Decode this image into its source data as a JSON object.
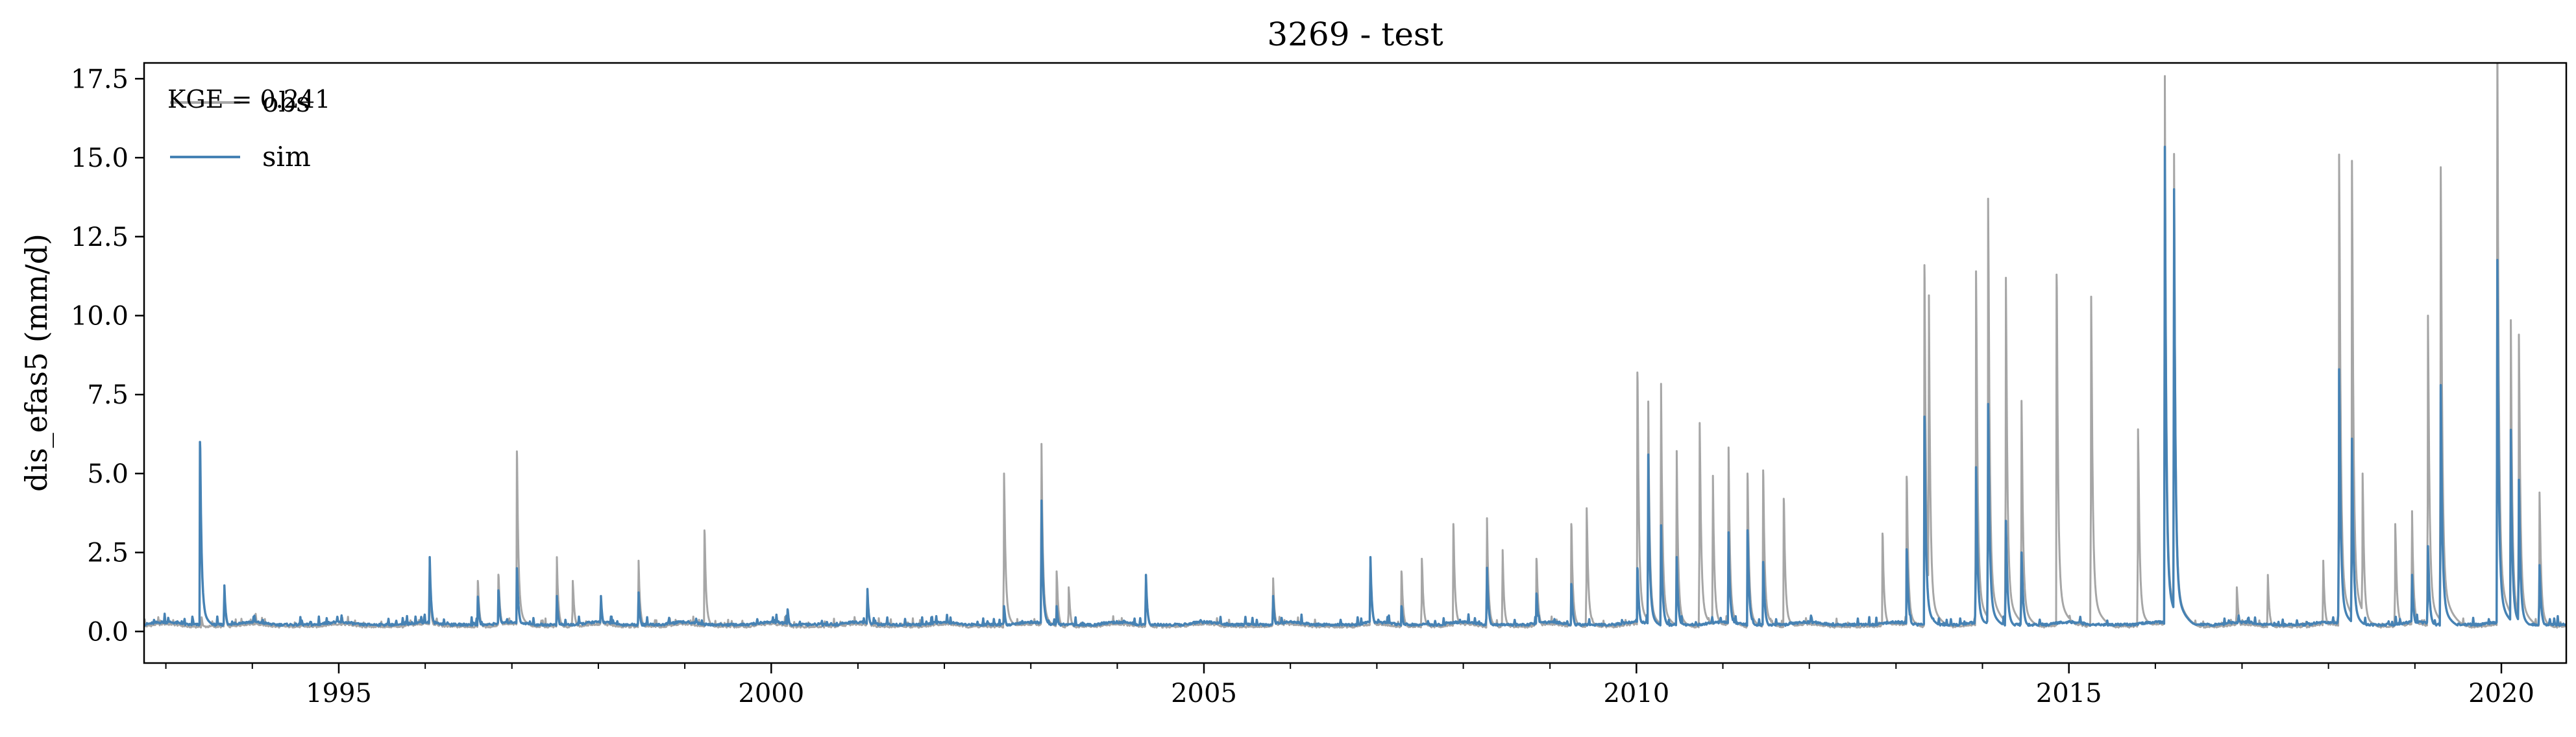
{
  "chart_data": {
    "type": "line",
    "title": "3269 - test",
    "xlabel": "",
    "ylabel": "dis_efas5 (mm/d)",
    "annotation": "KGE = 0.241",
    "xlim": [
      "1992-10-01",
      "2020-10-01"
    ],
    "ylim": [
      -1.0,
      18.0
    ],
    "x_ticks": [
      "1995",
      "2000",
      "2005",
      "2010",
      "2015",
      "2020"
    ],
    "y_ticks": [
      "0.0",
      "2.5",
      "5.0",
      "7.5",
      "10.0",
      "12.5",
      "15.0",
      "17.5"
    ],
    "grid": false,
    "legend_position": "top-left",
    "series": [
      {
        "name": "obs",
        "color": "#a6a6a6",
        "baseline": 0.12,
        "peaks": [
          [
            "1993-06-01",
            0.4
          ],
          [
            "1993-09-05",
            1.1
          ],
          [
            "1994-01-15",
            0.5
          ],
          [
            "1996-01-20",
            1.4
          ],
          [
            "1996-08-10",
            1.6
          ],
          [
            "1996-11-05",
            1.8
          ],
          [
            "1997-01-22",
            5.7
          ],
          [
            "1997-07-10",
            2.1
          ],
          [
            "1997-09-15",
            1.6
          ],
          [
            "1998-01-12",
            0.9
          ],
          [
            "1998-06-20",
            2.0
          ],
          [
            "1999-03-25",
            3.2
          ],
          [
            "2000-03-10",
            0.6
          ],
          [
            "2001-02-10",
            1.2
          ],
          [
            "2002-09-10",
            5.0
          ],
          [
            "2003-02-15",
            5.3
          ],
          [
            "2003-04-20",
            1.9
          ],
          [
            "2003-06-10",
            1.4
          ],
          [
            "2004-05-01",
            1.6
          ],
          [
            "2005-10-20",
            1.5
          ],
          [
            "2006-12-05",
            2.0
          ],
          [
            "2007-04-15",
            1.9
          ],
          [
            "2007-07-10",
            2.3
          ],
          [
            "2007-11-20",
            3.4
          ],
          [
            "2008-04-10",
            3.2
          ],
          [
            "2008-06-15",
            2.3
          ],
          [
            "2008-11-05",
            2.3
          ],
          [
            "2009-04-01",
            3.4
          ],
          [
            "2009-06-05",
            3.9
          ],
          [
            "2010-01-05",
            8.2
          ],
          [
            "2010-02-20",
            6.5
          ],
          [
            "2010-04-15",
            7.0
          ],
          [
            "2010-06-20",
            5.1
          ],
          [
            "2010-09-25",
            6.6
          ],
          [
            "2010-11-20",
            4.4
          ],
          [
            "2011-01-25",
            5.2
          ],
          [
            "2011-04-15",
            5.0
          ],
          [
            "2011-06-20",
            5.1
          ],
          [
            "2011-09-15",
            4.2
          ],
          [
            "2012-11-05",
            3.1
          ],
          [
            "2013-02-15",
            4.9
          ],
          [
            "2013-05-01",
            11.6
          ],
          [
            "2013-05-20",
            9.5
          ],
          [
            "2013-12-05",
            11.4
          ],
          [
            "2014-01-25",
            13.7
          ],
          [
            "2014-04-10",
            11.2
          ],
          [
            "2014-06-15",
            7.3
          ],
          [
            "2014-11-10",
            11.3
          ],
          [
            "2015-04-05",
            10.6
          ],
          [
            "2015-10-20",
            6.4
          ],
          [
            "2016-02-10",
            15.7
          ],
          [
            "2016-03-20",
            13.5
          ],
          [
            "2016-12-10",
            1.4
          ],
          [
            "2017-04-20",
            1.6
          ],
          [
            "2017-12-10",
            2.0
          ],
          [
            "2018-02-15",
            15.1
          ],
          [
            "2018-04-10",
            14.9
          ],
          [
            "2018-05-25",
            5.0
          ],
          [
            "2018-10-10",
            3.4
          ],
          [
            "2018-12-20",
            3.4
          ],
          [
            "2019-02-25",
            10.0
          ],
          [
            "2019-04-20",
            14.7
          ],
          [
            "2019-12-15",
            17.2
          ],
          [
            "2020-02-10",
            8.8
          ],
          [
            "2020-03-15",
            9.4
          ],
          [
            "2020-06-10",
            4.4
          ]
        ]
      },
      {
        "name": "sim",
        "color": "#4682b4",
        "baseline": 0.18,
        "peaks": [
          [
            "1993-05-25",
            6.0
          ],
          [
            "1993-09-05",
            1.3
          ],
          [
            "1994-01-10",
            0.5
          ],
          [
            "1996-01-20",
            2.1
          ],
          [
            "1996-08-10",
            1.1
          ],
          [
            "1996-11-05",
            1.3
          ],
          [
            "1997-01-22",
            2.0
          ],
          [
            "1997-07-10",
            1.0
          ],
          [
            "1998-01-12",
            1.0
          ],
          [
            "1998-06-20",
            1.1
          ],
          [
            "2000-03-10",
            0.7
          ],
          [
            "2001-02-10",
            1.2
          ],
          [
            "2002-09-10",
            0.8
          ],
          [
            "2003-02-15",
            3.7
          ],
          [
            "2003-04-20",
            0.8
          ],
          [
            "2004-05-01",
            1.6
          ],
          [
            "2005-10-20",
            1.0
          ],
          [
            "2006-12-05",
            2.1
          ],
          [
            "2007-04-15",
            0.8
          ],
          [
            "2008-04-10",
            1.8
          ],
          [
            "2008-11-05",
            1.2
          ],
          [
            "2009-04-01",
            1.5
          ],
          [
            "2010-01-05",
            2.0
          ],
          [
            "2010-02-20",
            5.0
          ],
          [
            "2010-04-15",
            3.0
          ],
          [
            "2010-06-20",
            2.1
          ],
          [
            "2011-01-25",
            2.8
          ],
          [
            "2011-04-15",
            3.2
          ],
          [
            "2011-06-20",
            2.2
          ],
          [
            "2013-02-15",
            2.6
          ],
          [
            "2013-05-01",
            6.8
          ],
          [
            "2013-12-05",
            5.2
          ],
          [
            "2014-01-25",
            7.2
          ],
          [
            "2014-04-10",
            3.5
          ],
          [
            "2014-06-15",
            2.5
          ],
          [
            "2016-02-10",
            13.7
          ],
          [
            "2016-03-20",
            12.5
          ],
          [
            "2018-02-15",
            8.3
          ],
          [
            "2018-04-10",
            6.1
          ],
          [
            "2018-12-20",
            1.6
          ],
          [
            "2019-02-25",
            2.7
          ],
          [
            "2019-04-20",
            7.8
          ],
          [
            "2019-12-15",
            10.5
          ],
          [
            "2020-02-10",
            5.7
          ],
          [
            "2020-03-15",
            4.8
          ],
          [
            "2020-06-10",
            2.1
          ]
        ]
      }
    ]
  }
}
